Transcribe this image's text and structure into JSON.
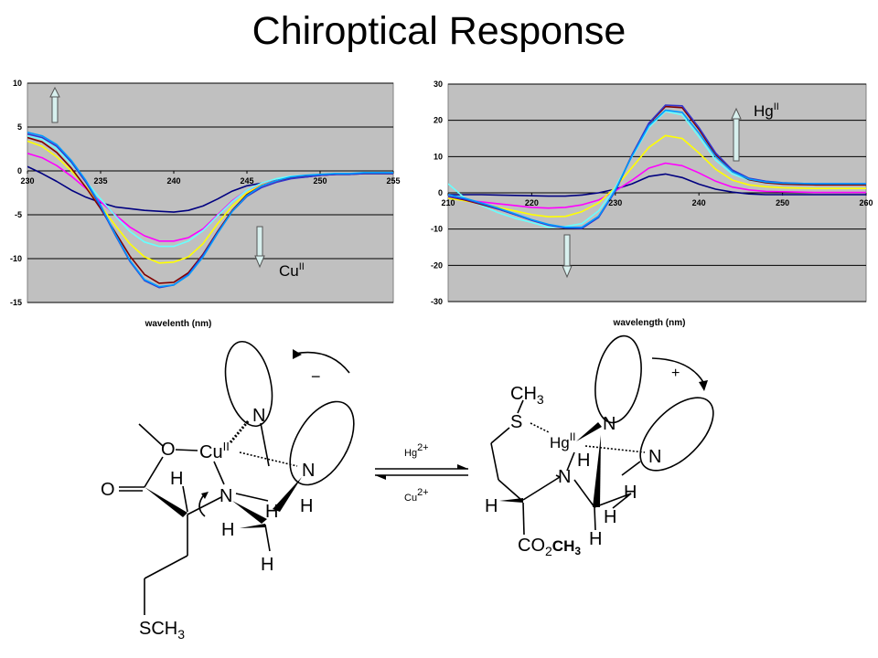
{
  "title": "Chiroptical Response",
  "charts": {
    "left": {
      "xlabel": "wavelenth (nm)",
      "ion_label": "Cu",
      "ion_sup": "II"
    },
    "right": {
      "xlabel": "wavelength (nm)",
      "ion_label": "Hg",
      "ion_sup": "II"
    }
  },
  "chart_data": [
    {
      "type": "line",
      "xlabel": "wavelenth (nm)",
      "ylabel": "",
      "xlim": [
        230,
        255
      ],
      "ylim": [
        -15,
        10
      ],
      "xticks": [
        230,
        235,
        240,
        245,
        250,
        255
      ],
      "yticks": [
        -15,
        -10,
        -5,
        0,
        5,
        10
      ],
      "grid": true,
      "annotation": {
        "text": "Cu",
        "sup": "II",
        "arrows": [
          "up near 230",
          "down near 246"
        ]
      },
      "series": [
        {
          "color": "#000080",
          "x": [
            230,
            231,
            232,
            233,
            234,
            235,
            236,
            237,
            238,
            239,
            240,
            241,
            242,
            243,
            244,
            245,
            246,
            247,
            248,
            249,
            250,
            251,
            252,
            253,
            254,
            255
          ],
          "y": [
            0.5,
            -0.3,
            -1.2,
            -2.2,
            -3.0,
            -3.6,
            -4.1,
            -4.3,
            -4.5,
            -4.6,
            -4.7,
            -4.5,
            -4.0,
            -3.2,
            -2.3,
            -1.7,
            -1.4,
            -1.1,
            -0.8,
            -0.7,
            -0.5,
            -0.4,
            -0.3,
            -0.3,
            -0.3,
            -0.3
          ]
        },
        {
          "color": "#ff00ff",
          "x": [
            230,
            231,
            232,
            233,
            234,
            235,
            236,
            237,
            238,
            239,
            240,
            241,
            242,
            243,
            244,
            245,
            246,
            247,
            248,
            249,
            250,
            251,
            252,
            253,
            254,
            255
          ],
          "y": [
            2.0,
            1.5,
            0.6,
            -0.6,
            -2.0,
            -3.5,
            -5.0,
            -6.4,
            -7.4,
            -8.0,
            -8.0,
            -7.6,
            -6.6,
            -5.0,
            -3.4,
            -2.2,
            -1.5,
            -1.1,
            -0.8,
            -0.6,
            -0.5,
            -0.4,
            -0.3,
            -0.3,
            -0.2,
            -0.2
          ]
        },
        {
          "color": "#ffff00",
          "x": [
            230,
            231,
            232,
            233,
            234,
            235,
            236,
            237,
            238,
            239,
            240,
            241,
            242,
            243,
            244,
            245,
            246,
            247,
            248,
            249,
            250,
            251,
            252,
            253,
            254,
            255
          ],
          "y": [
            3.4,
            2.8,
            1.6,
            0.0,
            -1.8,
            -4.0,
            -6.2,
            -8.3,
            -9.8,
            -10.5,
            -10.4,
            -9.8,
            -8.3,
            -6.0,
            -4.0,
            -2.5,
            -1.6,
            -1.1,
            -0.7,
            -0.5,
            -0.4,
            -0.3,
            -0.3,
            -0.3,
            -0.3,
            -0.3
          ]
        },
        {
          "color": "#66ffff",
          "x": [
            230,
            231,
            232,
            233,
            234,
            235,
            236,
            237,
            238,
            239,
            240,
            241,
            242,
            243,
            244,
            245,
            246,
            247,
            248,
            249,
            250,
            251,
            252,
            253,
            254,
            255
          ],
          "y": [
            4.0,
            3.6,
            2.5,
            0.8,
            -1.2,
            -3.2,
            -5.1,
            -6.9,
            -8.1,
            -8.6,
            -8.6,
            -8.0,
            -6.8,
            -5.1,
            -3.5,
            -2.2,
            -1.4,
            -0.9,
            -0.6,
            -0.5,
            -0.4,
            -0.3,
            -0.3,
            -0.2,
            -0.2,
            -0.2
          ]
        },
        {
          "color": "#800000",
          "x": [
            230,
            231,
            232,
            233,
            234,
            235,
            236,
            237,
            238,
            239,
            240,
            241,
            242,
            243,
            244,
            245,
            246,
            247,
            248,
            249,
            250,
            251,
            252,
            253,
            254,
            255
          ],
          "y": [
            3.8,
            3.3,
            2.1,
            0.3,
            -1.9,
            -4.3,
            -7.0,
            -9.7,
            -11.8,
            -12.8,
            -12.7,
            -11.6,
            -9.5,
            -6.9,
            -4.5,
            -2.7,
            -1.7,
            -1.1,
            -0.8,
            -0.6,
            -0.5,
            -0.4,
            -0.4,
            -0.3,
            -0.3,
            -0.3
          ]
        },
        {
          "color": "#3333cc",
          "x": [
            230,
            231,
            232,
            233,
            234,
            235,
            236,
            237,
            238,
            239,
            240,
            241,
            242,
            243,
            244,
            245,
            246,
            247,
            248,
            249,
            250,
            251,
            252,
            253,
            254,
            255
          ],
          "y": [
            4.2,
            3.8,
            2.8,
            1.0,
            -1.3,
            -4.1,
            -7.3,
            -10.3,
            -12.5,
            -13.3,
            -13.0,
            -11.8,
            -9.6,
            -7.0,
            -4.6,
            -2.9,
            -1.9,
            -1.3,
            -0.9,
            -0.7,
            -0.5,
            -0.4,
            -0.4,
            -0.3,
            -0.3,
            -0.3
          ]
        },
        {
          "color": "#0099ff",
          "x": [
            230,
            231,
            232,
            233,
            234,
            235,
            236,
            237,
            238,
            239,
            240,
            241,
            242,
            243,
            244,
            245,
            246,
            247,
            248,
            249,
            250,
            251,
            252,
            253,
            254,
            255
          ],
          "y": [
            4.4,
            4.0,
            3.0,
            1.2,
            -1.1,
            -3.9,
            -7.2,
            -10.2,
            -12.4,
            -13.2,
            -13.0,
            -11.9,
            -9.8,
            -7.1,
            -4.6,
            -2.8,
            -1.7,
            -1.1,
            -0.7,
            -0.5,
            -0.4,
            -0.3,
            -0.3,
            -0.2,
            -0.2,
            -0.2
          ]
        }
      ]
    },
    {
      "type": "line",
      "xlabel": "wavelength (nm)",
      "ylabel": "",
      "xlim": [
        210,
        260
      ],
      "ylim": [
        -30,
        30
      ],
      "xticks": [
        210,
        220,
        230,
        240,
        250,
        260
      ],
      "yticks": [
        -30,
        -20,
        -10,
        0,
        10,
        20,
        30
      ],
      "grid": true,
      "annotation": {
        "text": "Hg",
        "sup": "II",
        "arrows": [
          "up near 244",
          "down near 222"
        ]
      },
      "series": [
        {
          "color": "#000080",
          "x": [
            210,
            212,
            214,
            216,
            218,
            220,
            222,
            224,
            226,
            228,
            230,
            232,
            234,
            236,
            238,
            240,
            242,
            244,
            246,
            248,
            250,
            252,
            254,
            256,
            258,
            260
          ],
          "y": [
            -0.5,
            -0.5,
            -0.5,
            -0.6,
            -0.7,
            -0.8,
            -0.9,
            -0.9,
            -0.6,
            0.0,
            1.0,
            2.5,
            4.5,
            5.2,
            4.2,
            2.4,
            1.0,
            0.2,
            -0.3,
            -0.5,
            -0.5,
            -0.5,
            -0.5,
            -0.5,
            -0.5,
            -0.5
          ]
        },
        {
          "color": "#ff00ff",
          "x": [
            210,
            212,
            214,
            216,
            218,
            220,
            222,
            224,
            226,
            228,
            230,
            232,
            234,
            236,
            238,
            240,
            242,
            244,
            246,
            248,
            250,
            252,
            254,
            256,
            258,
            260
          ],
          "y": [
            -1.5,
            -2.0,
            -2.5,
            -3.0,
            -3.5,
            -4.0,
            -4.2,
            -4.0,
            -3.3,
            -2.0,
            0.5,
            3.5,
            6.8,
            8.2,
            7.5,
            5.5,
            3.2,
            1.6,
            0.8,
            0.4,
            0.3,
            0.2,
            0.1,
            0.1,
            0.1,
            0.1
          ]
        },
        {
          "color": "#ffff00",
          "x": [
            210,
            212,
            214,
            216,
            218,
            220,
            222,
            224,
            226,
            228,
            230,
            232,
            234,
            236,
            238,
            240,
            242,
            244,
            246,
            248,
            250,
            252,
            254,
            256,
            258,
            260
          ],
          "y": [
            -1.5,
            -2.2,
            -3.0,
            -4.0,
            -5.0,
            -6.0,
            -6.6,
            -6.5,
            -5.2,
            -2.8,
            1.5,
            7.0,
            12.5,
            15.8,
            15.0,
            11.0,
            6.5,
            3.5,
            2.2,
            1.7,
            1.4,
            1.3,
            1.2,
            1.2,
            1.2,
            1.2
          ]
        },
        {
          "color": "#66ffff",
          "x": [
            210,
            212,
            214,
            216,
            218,
            220,
            222,
            224,
            226,
            228,
            230,
            232,
            234,
            236,
            238,
            240,
            242,
            244,
            246,
            248,
            250,
            252,
            254,
            256,
            258,
            260
          ],
          "y": [
            2.5,
            -1.5,
            -3.5,
            -5.5,
            -7.0,
            -8.2,
            -9.5,
            -9.3,
            -8.5,
            -5.0,
            1.5,
            10.0,
            18.0,
            22.5,
            21.5,
            15.5,
            9.0,
            5.2,
            3.5,
            2.8,
            2.5,
            2.4,
            2.3,
            2.3,
            2.3,
            2.3
          ]
        },
        {
          "color": "#800000",
          "x": [
            210,
            212,
            214,
            216,
            218,
            220,
            222,
            224,
            226,
            228,
            230,
            232,
            234,
            236,
            238,
            240,
            242,
            244,
            246,
            248,
            250,
            252,
            254,
            256,
            258,
            260
          ],
          "y": [
            -1.0,
            -2.0,
            -3.2,
            -4.5,
            -6.0,
            -7.5,
            -8.8,
            -9.6,
            -9.6,
            -6.5,
            0.5,
            10.5,
            19.0,
            23.8,
            23.5,
            17.5,
            10.5,
            6.0,
            3.6,
            2.8,
            2.4,
            2.3,
            2.2,
            2.2,
            2.2,
            2.2
          ]
        },
        {
          "color": "#3333cc",
          "x": [
            210,
            212,
            214,
            216,
            218,
            220,
            222,
            224,
            226,
            228,
            230,
            232,
            234,
            236,
            238,
            240,
            242,
            244,
            246,
            248,
            250,
            252,
            254,
            256,
            258,
            260
          ],
          "y": [
            -1.0,
            -1.8,
            -3.0,
            -4.5,
            -6.0,
            -7.6,
            -8.9,
            -9.7,
            -9.8,
            -6.8,
            0.5,
            10.5,
            19.2,
            24.2,
            24.0,
            18.0,
            11.0,
            6.3,
            4.0,
            3.2,
            2.8,
            2.6,
            2.5,
            2.5,
            2.5,
            2.5
          ]
        },
        {
          "color": "#0099ff",
          "x": [
            210,
            212,
            214,
            216,
            218,
            220,
            222,
            224,
            226,
            228,
            230,
            232,
            234,
            236,
            238,
            240,
            242,
            244,
            246,
            248,
            250,
            252,
            254,
            256,
            258,
            260
          ],
          "y": [
            -0.5,
            -1.5,
            -2.8,
            -4.2,
            -5.8,
            -7.4,
            -8.7,
            -9.5,
            -9.5,
            -6.5,
            0.8,
            10.2,
            18.5,
            22.8,
            22.2,
            16.5,
            10.0,
            5.8,
            3.8,
            3.0,
            2.7,
            2.6,
            2.5,
            2.5,
            2.5,
            2.5
          ]
        }
      ]
    }
  ],
  "structures": {
    "left": {
      "o_ester": "O",
      "o_carbonyl": "O",
      "cu": "Cu",
      "cu_sup": "II",
      "n_top": "N",
      "n_right": "N",
      "n_amine": "N",
      "h_alpha": "H",
      "h_1": "H",
      "h_2": "H",
      "h_3": "H",
      "h_4": "H",
      "sch3": "SCH",
      "sch3_sub": "3",
      "rotation_sign": "−"
    },
    "right": {
      "ch3": "CH",
      "ch3_sub": "3",
      "s": "S",
      "hg": "Hg",
      "hg_sup": "II",
      "n_top": "N",
      "n_right": "N",
      "n_amine": "N",
      "h_alpha": "H",
      "h_1": "H",
      "h_2": "H",
      "h_3": "H",
      "h_4": "H",
      "co2": "CO",
      "co2_sub": "2",
      "co2_ch3": "CH",
      "co2_ch3_sub": "3",
      "rotation_sign": "+"
    },
    "equilibrium": {
      "forward": "Hg",
      "forward_sup": "2+",
      "reverse": "Cu",
      "reverse_sup": "2+"
    }
  }
}
